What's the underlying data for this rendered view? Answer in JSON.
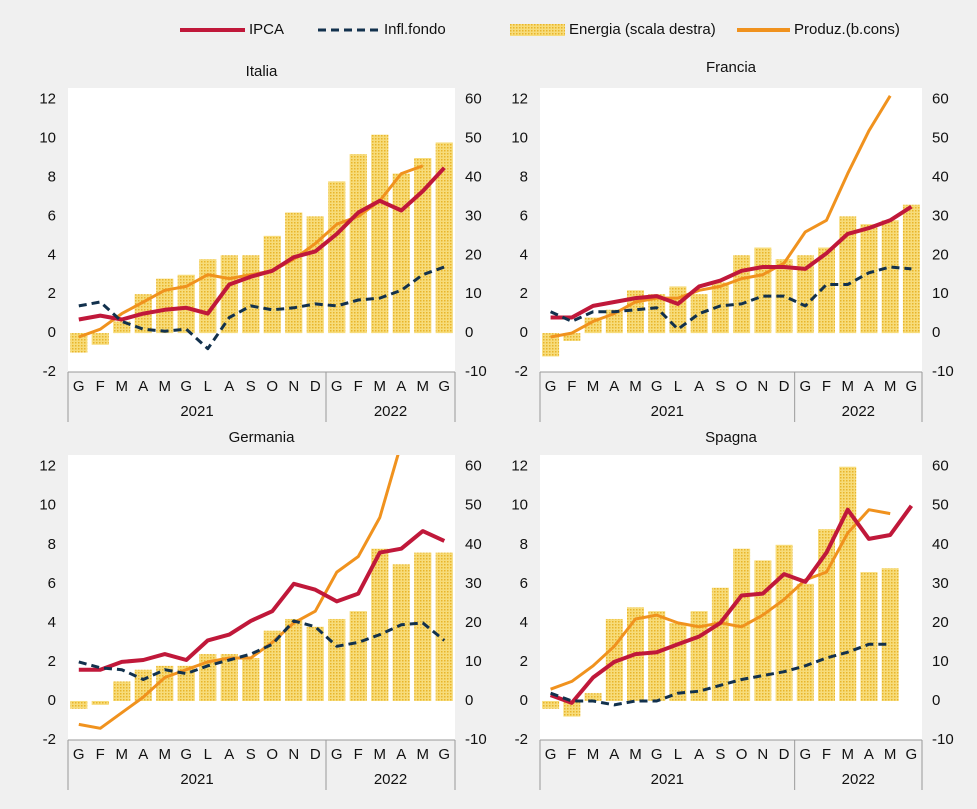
{
  "chart_data": [
    {
      "type": "combo",
      "title": "Italia",
      "categories": [
        "G",
        "F",
        "M",
        "A",
        "M",
        "G",
        "L",
        "A",
        "S",
        "O",
        "N",
        "D",
        "G",
        "F",
        "M",
        "A",
        "M",
        "G"
      ],
      "x_groups": [
        {
          "label": "2021",
          "count": 12
        },
        {
          "label": "2022",
          "count": 6
        }
      ],
      "ylim": [
        -2,
        12.6
      ],
      "yticks": [
        -2,
        0,
        2,
        4,
        6,
        8,
        10,
        12
      ],
      "y2lim": [
        -10,
        63
      ],
      "y2ticks": [
        -10,
        0,
        10,
        20,
        30,
        40,
        50,
        60
      ],
      "series": [
        {
          "name": "Energia (scala destra)",
          "kind": "bar",
          "axis": "y2",
          "color": "#f2c744",
          "values": [
            -5,
            -3,
            3,
            10,
            14,
            15,
            19,
            20,
            20,
            25,
            31,
            30,
            39,
            46,
            51,
            41,
            45,
            49
          ]
        },
        {
          "name": "Produz.(b.cons)",
          "kind": "line",
          "axis": "y2",
          "color": "#f0921e",
          "values": [
            -1,
            1,
            5,
            8,
            11,
            12,
            15,
            14,
            15,
            16,
            19,
            23,
            28,
            30,
            34,
            41,
            43,
            null
          ]
        },
        {
          "name": "IPCA",
          "kind": "line",
          "axis": "y",
          "color": "#c0183a",
          "values": [
            0.7,
            0.9,
            0.7,
            1.0,
            1.2,
            1.3,
            1.0,
            2.5,
            2.9,
            3.2,
            3.9,
            4.2,
            5.1,
            6.2,
            6.8,
            6.3,
            7.3,
            8.5
          ]
        },
        {
          "name": "Infl.fondo",
          "kind": "dashed",
          "axis": "y",
          "color": "#12314d",
          "values": [
            1.4,
            1.6,
            0.6,
            0.2,
            0.1,
            0.2,
            -0.8,
            0.8,
            1.4,
            1.2,
            1.3,
            1.5,
            1.4,
            1.7,
            1.8,
            2.2,
            3.0,
            3.4
          ]
        }
      ]
    },
    {
      "type": "combo",
      "title": "Francia",
      "categories": [
        "G",
        "F",
        "M",
        "A",
        "M",
        "G",
        "L",
        "A",
        "S",
        "O",
        "N",
        "D",
        "G",
        "F",
        "M",
        "A",
        "M",
        "G"
      ],
      "x_groups": [
        {
          "label": "2021",
          "count": 12
        },
        {
          "label": "2022",
          "count": 6
        }
      ],
      "ylim": [
        -2,
        12.6
      ],
      "yticks": [
        -2,
        0,
        2,
        4,
        6,
        8,
        10,
        12
      ],
      "y2lim": [
        -10,
        63
      ],
      "y2ticks": [
        -10,
        0,
        10,
        20,
        30,
        40,
        50,
        60
      ],
      "series": [
        {
          "kind": "bar",
          "axis": "y2",
          "color": "#f2c744",
          "values": [
            -6,
            -2,
            4,
            6,
            11,
            10,
            12,
            10,
            13,
            20,
            22,
            19,
            20,
            22,
            30,
            28,
            29,
            33
          ]
        },
        {
          "kind": "line",
          "axis": "y2",
          "color": "#f0921e",
          "values": [
            -1,
            0,
            3,
            5,
            8,
            9,
            9,
            11,
            12,
            14,
            15,
            18,
            26,
            29,
            41,
            52,
            61,
            null
          ]
        },
        {
          "kind": "line",
          "axis": "y",
          "color": "#c0183a",
          "values": [
            0.8,
            0.8,
            1.4,
            1.6,
            1.8,
            1.9,
            1.5,
            2.4,
            2.7,
            3.2,
            3.4,
            3.4,
            3.3,
            4.1,
            5.1,
            5.4,
            5.8,
            6.5
          ]
        },
        {
          "kind": "dashed",
          "axis": "y",
          "color": "#12314d",
          "values": [
            1.1,
            0.6,
            1.1,
            1.1,
            1.2,
            1.3,
            0.2,
            1.0,
            1.4,
            1.5,
            1.9,
            1.9,
            1.4,
            2.5,
            2.5,
            3.1,
            3.4,
            3.3
          ]
        }
      ]
    },
    {
      "type": "combo",
      "title": "Germania",
      "categories": [
        "G",
        "F",
        "M",
        "A",
        "M",
        "G",
        "L",
        "A",
        "S",
        "O",
        "N",
        "D",
        "G",
        "F",
        "M",
        "A",
        "M",
        "G"
      ],
      "x_groups": [
        {
          "label": "2021",
          "count": 12
        },
        {
          "label": "2022",
          "count": 6
        }
      ],
      "ylim": [
        -2,
        12.6
      ],
      "yticks": [
        -2,
        0,
        2,
        4,
        6,
        8,
        10,
        12
      ],
      "y2lim": [
        -10,
        63
      ],
      "y2ticks": [
        -10,
        0,
        10,
        20,
        30,
        40,
        50,
        60
      ],
      "series": [
        {
          "kind": "bar",
          "axis": "y2",
          "color": "#f2c744",
          "values": [
            -2,
            -1,
            5,
            8,
            9,
            9,
            12,
            12,
            11,
            18,
            21,
            19,
            21,
            23,
            39,
            35,
            38,
            38
          ]
        },
        {
          "kind": "line",
          "axis": "y2",
          "color": "#f0921e",
          "values": [
            -6,
            -7,
            -3,
            1,
            6,
            8,
            10,
            11,
            11,
            15,
            20,
            23,
            33,
            37,
            47,
            66,
            null,
            null
          ]
        },
        {
          "kind": "line",
          "axis": "y",
          "color": "#c0183a",
          "values": [
            1.6,
            1.6,
            2.0,
            2.1,
            2.4,
            2.1,
            3.1,
            3.4,
            4.1,
            4.6,
            6.0,
            5.7,
            5.1,
            5.5,
            7.6,
            7.8,
            8.7,
            8.2
          ]
        },
        {
          "kind": "dashed",
          "axis": "y",
          "color": "#12314d",
          "values": [
            2.0,
            1.7,
            1.6,
            1.1,
            1.6,
            1.4,
            1.8,
            2.1,
            2.4,
            2.9,
            4.1,
            3.8,
            2.8,
            3.0,
            3.4,
            3.9,
            4.0,
            3.1
          ]
        }
      ]
    },
    {
      "type": "combo",
      "title": "Spagna",
      "categories": [
        "G",
        "F",
        "M",
        "A",
        "M",
        "G",
        "L",
        "A",
        "S",
        "O",
        "N",
        "D",
        "G",
        "F",
        "M",
        "A",
        "M",
        "G"
      ],
      "x_groups": [
        {
          "label": "2021",
          "count": 12
        },
        {
          "label": "2022",
          "count": 6
        }
      ],
      "ylim": [
        -2,
        12.6
      ],
      "yticks": [
        -2,
        0,
        2,
        4,
        6,
        8,
        10,
        12
      ],
      "y2lim": [
        -10,
        63
      ],
      "y2ticks": [
        -10,
        0,
        10,
        20,
        30,
        40,
        50,
        60
      ],
      "series": [
        {
          "kind": "bar",
          "axis": "y2",
          "color": "#f2c744",
          "values": [
            -2,
            -4,
            2,
            21,
            24,
            23,
            20,
            23,
            29,
            39,
            36,
            40,
            30,
            44,
            60,
            33,
            34,
            null
          ]
        },
        {
          "kind": "line",
          "axis": "y2",
          "color": "#f0921e",
          "values": [
            3,
            5,
            9,
            14,
            21,
            22,
            20,
            19,
            20,
            19,
            22,
            26,
            31,
            33,
            43,
            49,
            48,
            null
          ]
        },
        {
          "kind": "line",
          "axis": "y",
          "color": "#c0183a",
          "values": [
            0.3,
            -0.1,
            1.2,
            2.0,
            2.4,
            2.5,
            2.9,
            3.3,
            4.0,
            5.4,
            5.5,
            6.5,
            6.1,
            7.6,
            9.8,
            8.3,
            8.5,
            10.0
          ]
        },
        {
          "kind": "dashed",
          "axis": "y",
          "color": "#12314d",
          "values": [
            0.4,
            0.0,
            0.0,
            -0.2,
            0.0,
            0.0,
            0.4,
            0.5,
            0.8,
            1.1,
            1.3,
            1.5,
            1.8,
            2.2,
            2.5,
            2.9,
            2.9,
            null
          ]
        }
      ]
    }
  ]
}
